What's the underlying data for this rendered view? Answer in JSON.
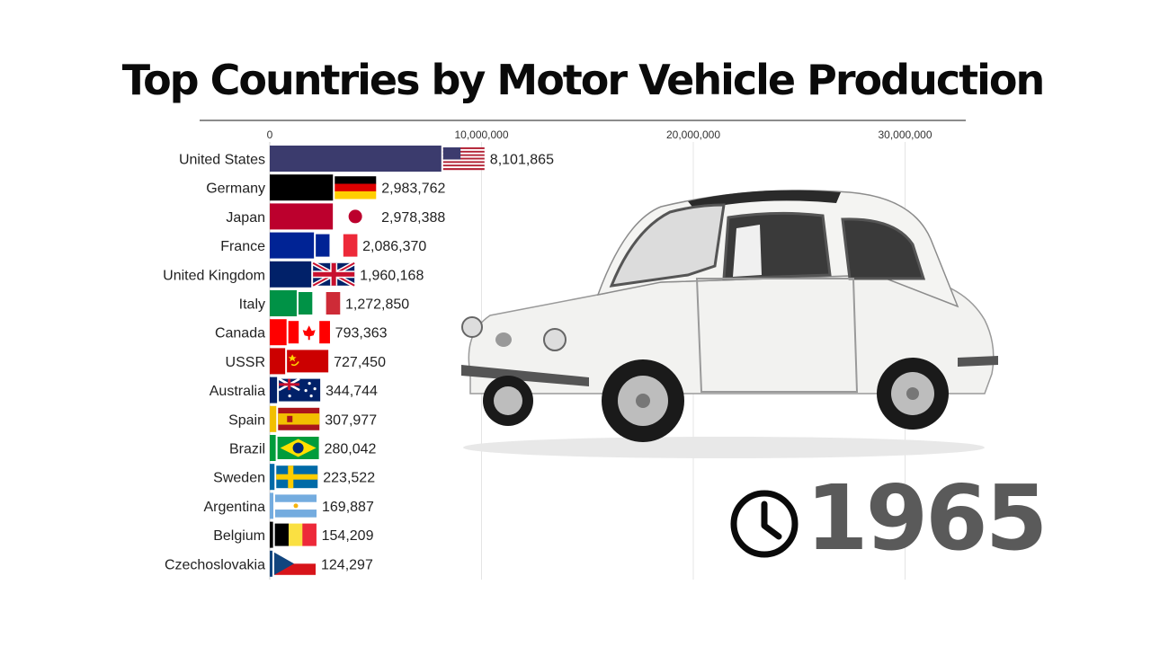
{
  "title": "Top Countries by Motor Vehicle Production",
  "year": "1965",
  "chart_data": {
    "type": "bar",
    "orientation": "horizontal",
    "title": "Top Countries by Motor Vehicle Production",
    "xlabel": "",
    "ylabel": "",
    "xlim": [
      0,
      33000000
    ],
    "ticks": [
      0,
      10000000,
      20000000,
      30000000
    ],
    "tick_labels": [
      "0",
      "10,000,000",
      "20,000,000",
      "30,000,000"
    ],
    "grid": true,
    "categories": [
      "United States",
      "Germany",
      "Japan",
      "France",
      "United Kingdom",
      "Italy",
      "Canada",
      "USSR",
      "Australia",
      "Spain",
      "Brazil",
      "Sweden",
      "Argentina",
      "Belgium",
      "Czechoslovakia"
    ],
    "values": [
      8101865,
      2983762,
      2978388,
      2086370,
      1960168,
      1272850,
      793363,
      727450,
      344744,
      307977,
      280042,
      223522,
      169887,
      154209,
      124297
    ],
    "value_labels": [
      "8,101,865",
      "2,983,762",
      "2,978,388",
      "2,086,370",
      "1,960,168",
      "1,272,850",
      "793,363",
      "727,450",
      "344,744",
      "307,977",
      "280,042",
      "223,522",
      "169,887",
      "154,209",
      "124,297"
    ],
    "bar_colors": [
      "#3b3b6d",
      "#000000",
      "#bc002d",
      "#002395",
      "#012169",
      "#009246",
      "#ff0000",
      "#cc0000",
      "#012169",
      "#f1bf00",
      "#009c3b",
      "#006aa7",
      "#74acdf",
      "#000000",
      "#11457e"
    ],
    "flags": [
      "us-flag",
      "germany-flag",
      "japan-flag",
      "france-flag",
      "uk-flag",
      "italy-flag",
      "canada-flag",
      "ussr-flag",
      "australia-flag",
      "spain-flag",
      "brazil-flag",
      "sweden-flag",
      "argentina-flag",
      "belgium-flag",
      "czechoslovakia-flag"
    ]
  },
  "icons": {
    "clock": "clock-icon",
    "car": "fiat-500-car-image"
  }
}
